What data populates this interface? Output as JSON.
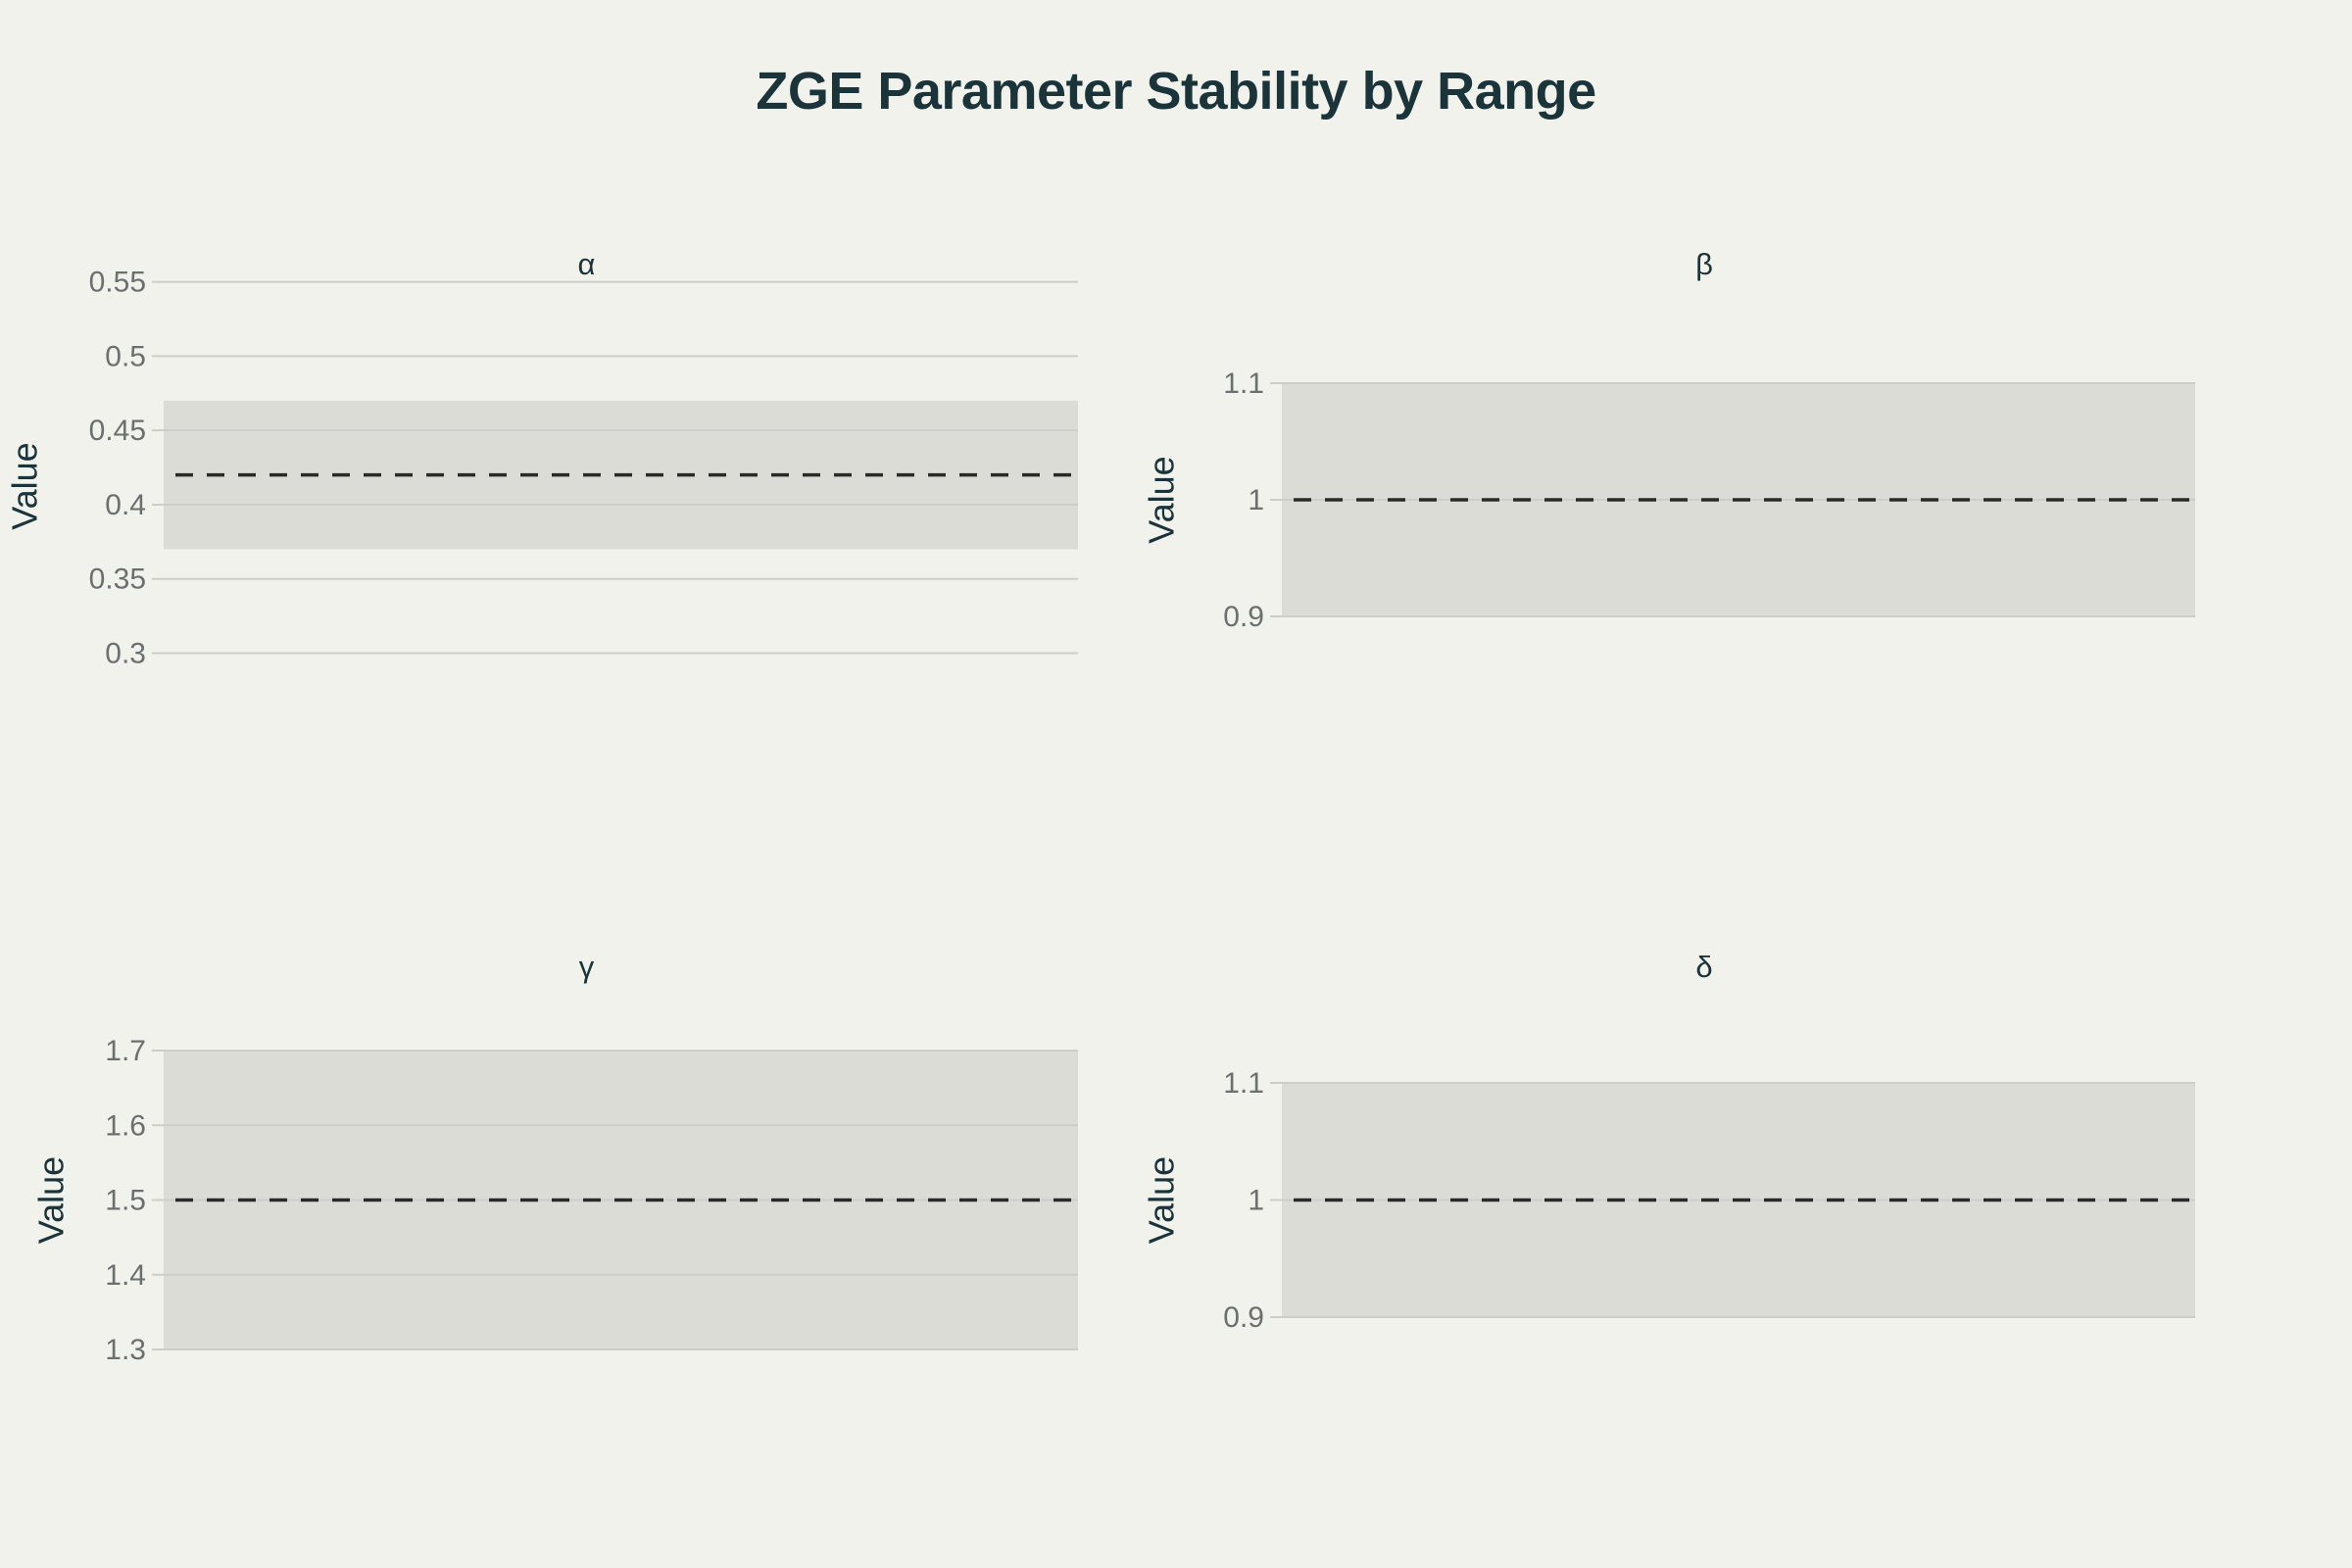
{
  "title": "ZGE Parameter Stability by Range",
  "colors": {
    "background": "#f2f2ed",
    "band": "#dcdcd7",
    "grid": "#cdcdc9",
    "reference_line": "#2a2a2a",
    "text": "#1b3439",
    "tick": "#6b6f70"
  },
  "chart_data": [
    {
      "type": "area",
      "title": "α",
      "ylabel": "Value",
      "ylim": [
        0.27,
        0.555
      ],
      "yticks": [
        0.3,
        0.35,
        0.4,
        0.45,
        0.5,
        0.55
      ],
      "ytick_labels": [
        "0.3",
        "0.35",
        "0.4",
        "0.45",
        "0.5",
        "0.55"
      ],
      "band": [
        0.37,
        0.47
      ],
      "reference": 0.42,
      "grid": true
    },
    {
      "type": "area",
      "title": "β",
      "ylabel": "Value",
      "ylim": [
        0.9,
        1.1
      ],
      "yticks": [
        0.9,
        1.0,
        1.1
      ],
      "ytick_labels": [
        "0.9",
        "1",
        "1.1"
      ],
      "band": [
        0.9,
        1.1
      ],
      "reference": 1.0,
      "grid": true
    },
    {
      "type": "area",
      "title": "γ",
      "ylabel": "Value",
      "ylim": [
        1.3,
        1.7
      ],
      "yticks": [
        1.3,
        1.4,
        1.5,
        1.6,
        1.7
      ],
      "ytick_labels": [
        "1.3",
        "1.4",
        "1.5",
        "1.6",
        "1.7"
      ],
      "band": [
        1.3,
        1.7
      ],
      "reference": 1.5,
      "grid": true
    },
    {
      "type": "area",
      "title": "δ",
      "ylabel": "Value",
      "ylim": [
        0.9,
        1.1
      ],
      "yticks": [
        0.9,
        1.0,
        1.1
      ],
      "ytick_labels": [
        "0.9",
        "1",
        "1.1"
      ],
      "band": [
        0.9,
        1.1
      ],
      "reference": 1.0,
      "grid": true
    }
  ]
}
